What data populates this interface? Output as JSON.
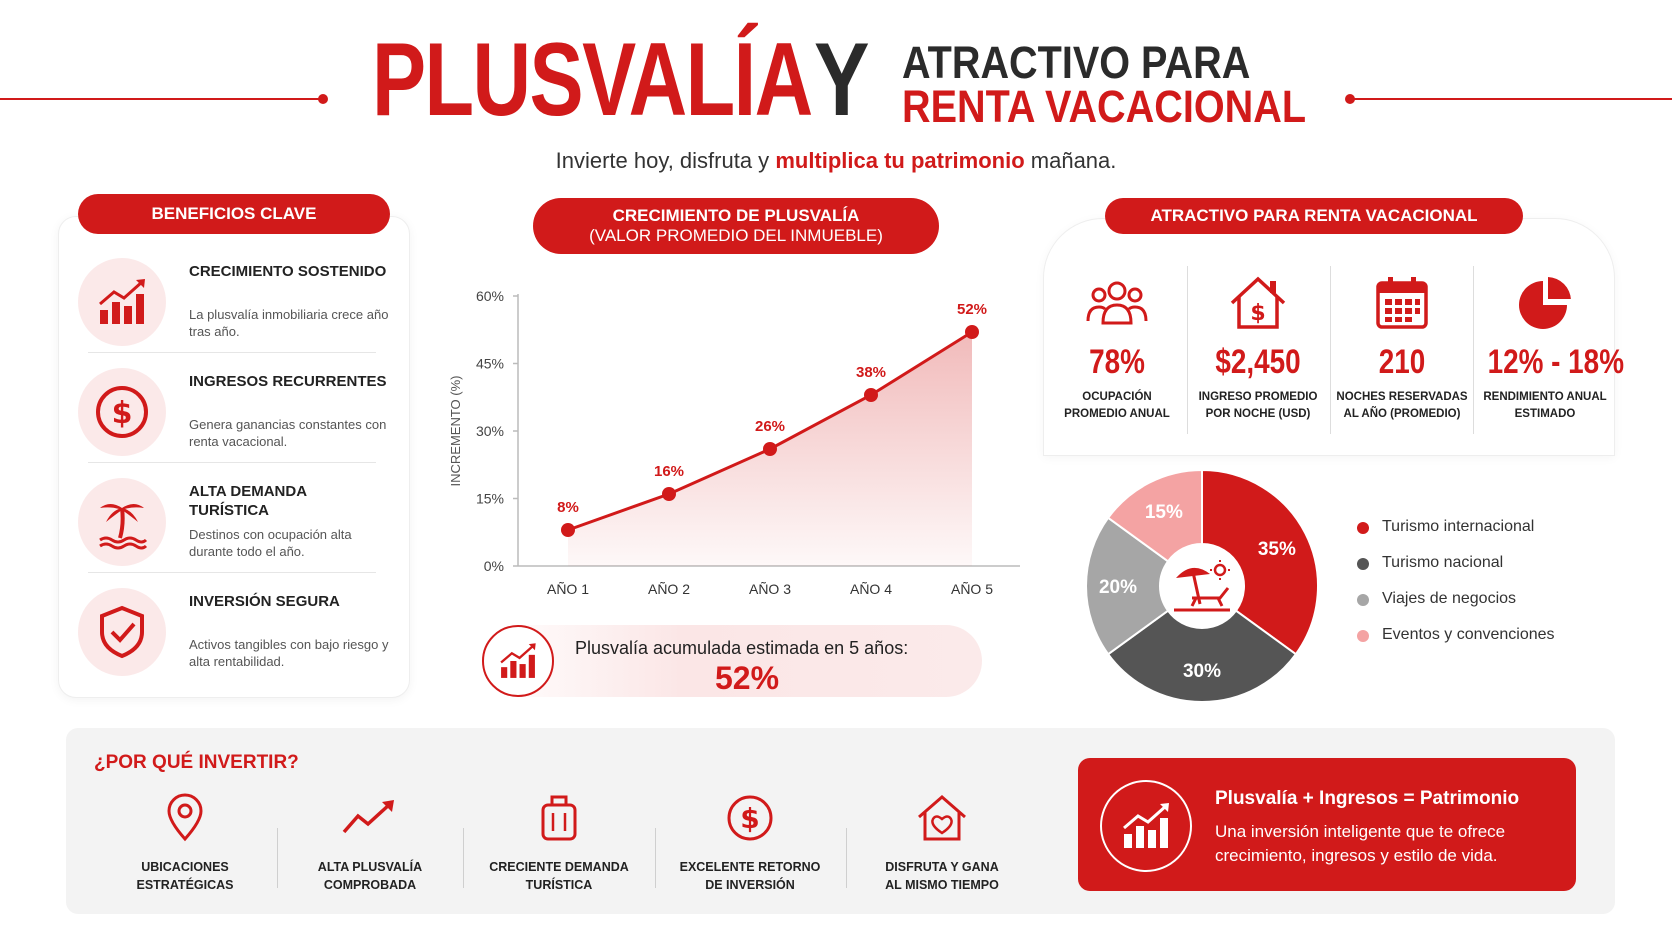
{
  "header": {
    "title_main": "PLUSVALÍA",
    "title_y": "Y",
    "title_right_line1": "ATRACTIVO PARA",
    "title_right_line2": "RENTA VACACIONAL",
    "tagline_before": "Invierte hoy, disfruta y ",
    "tagline_bold": "multiplica tu patrimonio",
    "tagline_after": " mañana."
  },
  "benefits": {
    "title": "BENEFICIOS CLAVE",
    "items": [
      {
        "title": "CRECIMIENTO SOSTENIDO",
        "desc": "La plusvalía inmobiliaria crece año tras año.",
        "icon": "bar-chart-growth-icon"
      },
      {
        "title": "INGRESOS RECURRENTES",
        "desc": "Genera ganancias constantes con renta vacacional.",
        "icon": "dollar-circle-icon"
      },
      {
        "title": "ALTA DEMANDA TURÍSTICA",
        "desc": "Destinos con ocupación alta durante todo el año.",
        "icon": "palm-tree-icon"
      },
      {
        "title": "INVERSIÓN SEGURA",
        "desc": "Activos tangibles con bajo riesgo y alta rentabilidad.",
        "icon": "shield-check-icon"
      }
    ]
  },
  "growth": {
    "title_line1": "CRECIMIENTO DE PLUSVALÍA",
    "title_line2": "(VALOR PROMEDIO DEL INMUEBLE)",
    "accumulated_label": "Plusvalía acumulada estimada en 5 años:",
    "accumulated_value": "52%"
  },
  "chart_data": [
    {
      "type": "line",
      "categories": [
        "AÑO 1",
        "AÑO 2",
        "AÑO 3",
        "AÑO 4",
        "AÑO 5"
      ],
      "values": [
        8,
        16,
        26,
        38,
        52
      ],
      "data_labels": [
        "8%",
        "16%",
        "26%",
        "38%",
        "52%"
      ],
      "title": "CRECIMIENTO DE PLUSVALÍA (VALOR PROMEDIO DEL INMUEBLE)",
      "xlabel": "",
      "ylabel": "INCREMENTO (%)",
      "ylim": [
        0,
        60
      ],
      "yticks": [
        "0%",
        "15%",
        "30%",
        "45%",
        "60%"
      ],
      "ytick_values": [
        0,
        15,
        30,
        45,
        60
      ],
      "area_fill": true,
      "color": "#d11a1a",
      "grid": false
    },
    {
      "type": "pie",
      "donut": true,
      "categories": [
        "Turismo internacional",
        "Turismo nacional",
        "Viajes de negocios",
        "Eventos y convenciones"
      ],
      "values": [
        35,
        30,
        20,
        15
      ],
      "data_labels": [
        "35%",
        "30%",
        "20%",
        "15%"
      ],
      "colors": [
        "#d11a1a",
        "#555555",
        "#a6a6a6",
        "#f4a3a3"
      ],
      "legend": "right",
      "center_icon": "beach-umbrella-icon"
    }
  ],
  "rental": {
    "title": "ATRACTIVO PARA RENTA VACACIONAL",
    "stats": [
      {
        "value": "78%",
        "label_line1": "OCUPACIÓN",
        "label_line2": "PROMEDIO ANUAL",
        "icon": "people-group-icon"
      },
      {
        "value": "$2,450",
        "label_line1": "INGRESO PROMEDIO",
        "label_line2": "POR NOCHE (USD)",
        "icon": "house-dollar-icon"
      },
      {
        "value": "210",
        "label_line1": "NOCHES RESERVADAS",
        "label_line2": "AL AÑO (PROMEDIO)",
        "icon": "calendar-icon"
      },
      {
        "value": "12% - 18%",
        "label_line1": "RENDIMIENTO ANUAL",
        "label_line2": "ESTIMADO",
        "icon": "pie-chart-icon"
      }
    ]
  },
  "why": {
    "title": "¿POR QUÉ INVERTIR?",
    "items": [
      {
        "line1": "UBICACIONES",
        "line2": "ESTRATÉGICAS",
        "icon": "location-pin-icon"
      },
      {
        "line1": "ALTA PLUSVALÍA",
        "line2": "COMPROBADA",
        "icon": "trend-up-icon"
      },
      {
        "line1": "CRECIENTE DEMANDA",
        "line2": "TURÍSTICA",
        "icon": "suitcase-icon"
      },
      {
        "line1": "EXCELENTE RETORNO",
        "line2": "DE INVERSIÓN",
        "icon": "dollar-circle-icon"
      },
      {
        "line1": "DISFRUTA Y GANA",
        "line2": "AL MISMO TIEMPO",
        "icon": "house-heart-icon"
      }
    ],
    "summary_title": "Plusvalía + Ingresos = Patrimonio",
    "summary_desc": "Una inversión inteligente que te ofrece crecimiento, ingresos y estilo de vida."
  },
  "colors": {
    "accent": "#d11a1a",
    "dark": "#2b2b2b",
    "light_red": "#fbe9e9"
  }
}
